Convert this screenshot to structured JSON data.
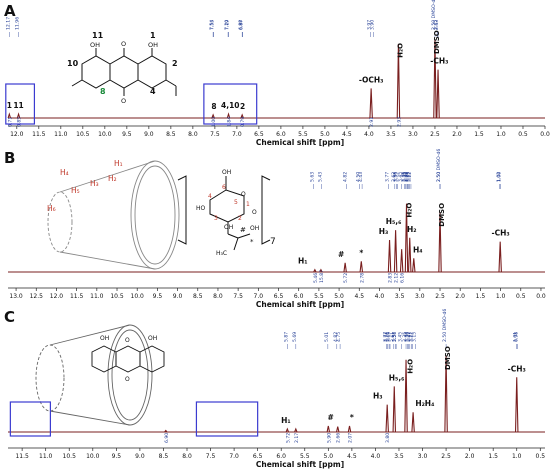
{
  "colors": {
    "spectrum": "#7a1f1f",
    "baseline_label": "#1f3a93",
    "box": "#3b3bd0",
    "ring_red": "#c0392b",
    "axis": "#222222"
  },
  "panels": [
    {
      "letter": "A",
      "xlabel": "Chemical shift [ppm]",
      "xlim": [
        12.2,
        0.0
      ],
      "ticks": [
        "12.0",
        "11.5",
        "11.0",
        "10.5",
        "10.0",
        "9.5",
        "9.0",
        "8.5",
        "8.0",
        "7.5",
        "7.0",
        "6.5",
        "6.0",
        "5.5",
        "5.0",
        "4.5",
        "4.0",
        "3.5",
        "3.0",
        "2.5",
        "2.0",
        "1.5",
        "1.0",
        "0.5",
        "0.0"
      ],
      "peak_labels": [
        {
          "ppm": 12.17,
          "text": "1"
        },
        {
          "ppm": 11.96,
          "text": "11"
        },
        {
          "ppm": 7.52,
          "text": "8"
        },
        {
          "ppm": 7.15,
          "text": "4,10"
        },
        {
          "ppm": 6.87,
          "text": "2"
        },
        {
          "ppm": 3.95,
          "text": "-OCH₃"
        },
        {
          "ppm": 3.33,
          "text": "H₂O"
        },
        {
          "ppm": 2.5,
          "text": "DMSO"
        },
        {
          "ppm": 2.4,
          "text": "-CH₃"
        }
      ],
      "top_shifts": [
        "12.17",
        "11.96",
        "7.54",
        "7.53",
        "7.20",
        "7.19",
        "6.88",
        "6.87",
        "3.97",
        "3.90",
        "2.45",
        "2.50 DMSO-d6",
        "2.43"
      ],
      "integrals": [
        "0.71",
        "0.85",
        "1.00",
        "1.84",
        "0.79",
        "2.91",
        "2.93"
      ],
      "structure_labels": [
        "11",
        "1",
        "OH",
        "OH",
        "10",
        "2",
        "8",
        "4",
        "O",
        "O"
      ]
    },
    {
      "letter": "B",
      "xlabel": "Chemical shift [ppm]",
      "xlim": [
        13.2,
        -0.1
      ],
      "ticks": [
        "13.0",
        "12.5",
        "12.0",
        "11.5",
        "11.0",
        "10.5",
        "10.0",
        "9.5",
        "9.0",
        "8.5",
        "8.0",
        "7.5",
        "7.0",
        "6.5",
        "6.0",
        "5.5",
        "5.0",
        "4.5",
        "4.0",
        "3.5",
        "3.0",
        "2.5",
        "2.0",
        "1.5",
        "1.0",
        "0.5",
        "0.0"
      ],
      "peak_labels": [
        {
          "ppm": 5.9,
          "text": "H₁"
        },
        {
          "ppm": 4.95,
          "text": "#"
        },
        {
          "ppm": 4.45,
          "text": "*"
        },
        {
          "ppm": 3.9,
          "text": "H₃"
        },
        {
          "ppm": 3.65,
          "text": "H₅,₆"
        },
        {
          "ppm": 3.3,
          "text": "H₂O"
        },
        {
          "ppm": 3.2,
          "text": "H₂"
        },
        {
          "ppm": 3.05,
          "text": "H₄"
        },
        {
          "ppm": 2.5,
          "text": "DMSO"
        },
        {
          "ppm": 1.0,
          "text": "-CH₃"
        }
      ],
      "top_shifts": [
        "5.63",
        "5.43",
        "4.82",
        "4.50",
        "4.43",
        "3.77",
        "3.62",
        "3.58",
        "3.55",
        "3.45",
        "3.38",
        "3.35",
        "3.32",
        "3.30",
        "3.28",
        "3.25",
        "3.22",
        "2.50 DMSO-d6",
        "2.50",
        "1.02",
        "1.00"
      ],
      "integrals": [
        "5.46",
        "15.87",
        "5.72",
        "2.78",
        "2.83",
        "2.12",
        "6.16"
      ],
      "ring_labels": [
        "H₁",
        "H₂",
        "H₃",
        "H₄",
        "H₅",
        "H₆"
      ],
      "sugar_labels": [
        "6",
        "4",
        "5",
        "3",
        "2",
        "1",
        "O",
        "O",
        "OH",
        "HO",
        "OH",
        "OH",
        "7",
        "#",
        "*",
        "H₃C"
      ]
    },
    {
      "letter": "C",
      "xlabel": "Chemical shift [ppm]",
      "xlim": [
        11.8,
        0.4
      ],
      "ticks": [
        "11.5",
        "11.0",
        "10.5",
        "10.0",
        "9.5",
        "9.0",
        "8.5",
        "8.0",
        "7.5",
        "7.0",
        "6.5",
        "6.0",
        "5.5",
        "5.0",
        "4.5",
        "4.0",
        "3.5",
        "3.0",
        "2.5",
        "2.0",
        "1.5",
        "1.0",
        "0.5"
      ],
      "peak_labels": [
        {
          "ppm": 5.9,
          "text": "H₁"
        },
        {
          "ppm": 4.95,
          "text": "#"
        },
        {
          "ppm": 4.5,
          "text": "*"
        },
        {
          "ppm": 3.95,
          "text": "H₃"
        },
        {
          "ppm": 3.55,
          "text": "H₅,₆"
        },
        {
          "ppm": 3.3,
          "text": "H₂O"
        },
        {
          "ppm": 3.05,
          "text": "H₂"
        },
        {
          "ppm": 2.85,
          "text": "H₄"
        },
        {
          "ppm": 2.5,
          "text": "DMSO"
        },
        {
          "ppm": 1.0,
          "text": "-CH₃"
        }
      ],
      "top_shifts": [
        "5.87",
        "5.69",
        "5.01",
        "4.82",
        "4.75",
        "3.77",
        "3.74",
        "3.71",
        "3.69",
        "3.61",
        "3.57",
        "3.56",
        "3.45",
        "3.35",
        "3.32",
        "3.30",
        "3.27",
        "3.23",
        "3.21",
        "3.15",
        "2.50 DMSO-d6",
        "1.01",
        "0.98"
      ],
      "integrals": [
        "6.90",
        "5.72",
        "2.17",
        "5.90",
        "2.66",
        "2.07",
        "3.80"
      ],
      "structure_labels": [
        "OH",
        "OH",
        "O",
        "O"
      ]
    }
  ],
  "chart_data": [
    {
      "type": "line",
      "title": "A",
      "xlabel": "Chemical shift [ppm]",
      "xlim": [
        12.2,
        0.0
      ],
      "x_reversed": true,
      "peaks": [
        {
          "x": 12.17,
          "y": 0.05
        },
        {
          "x": 11.96,
          "y": 0.05
        },
        {
          "x": 7.54,
          "y": 0.04
        },
        {
          "x": 7.19,
          "y": 0.05
        },
        {
          "x": 6.88,
          "y": 0.04
        },
        {
          "x": 3.95,
          "y": 0.38
        },
        {
          "x": 3.33,
          "y": 0.95
        },
        {
          "x": 2.5,
          "y": 1.0
        },
        {
          "x": 2.43,
          "y": 0.62
        }
      ]
    },
    {
      "type": "line",
      "title": "B",
      "xlabel": "Chemical shift [ppm]",
      "xlim": [
        13.2,
        -0.1
      ],
      "x_reversed": true,
      "peaks": [
        {
          "x": 5.6,
          "y": 0.03
        },
        {
          "x": 5.45,
          "y": 0.03
        },
        {
          "x": 4.85,
          "y": 0.12
        },
        {
          "x": 4.45,
          "y": 0.14
        },
        {
          "x": 3.75,
          "y": 0.42
        },
        {
          "x": 3.6,
          "y": 0.55
        },
        {
          "x": 3.45,
          "y": 0.3
        },
        {
          "x": 3.33,
          "y": 0.9
        },
        {
          "x": 3.25,
          "y": 0.45
        },
        {
          "x": 3.15,
          "y": 0.18
        },
        {
          "x": 2.5,
          "y": 0.78
        },
        {
          "x": 1.01,
          "y": 0.4
        }
      ]
    },
    {
      "type": "line",
      "title": "C",
      "xlabel": "Chemical shift [ppm]",
      "xlim": [
        11.8,
        0.4
      ],
      "x_reversed": true,
      "peaks": [
        {
          "x": 8.45,
          "y": 0.02
        },
        {
          "x": 5.87,
          "y": 0.04
        },
        {
          "x": 5.69,
          "y": 0.04
        },
        {
          "x": 5.0,
          "y": 0.08
        },
        {
          "x": 4.8,
          "y": 0.07
        },
        {
          "x": 4.55,
          "y": 0.08
        },
        {
          "x": 3.75,
          "y": 0.36
        },
        {
          "x": 3.6,
          "y": 0.6
        },
        {
          "x": 3.35,
          "y": 0.95
        },
        {
          "x": 3.2,
          "y": 0.26
        },
        {
          "x": 2.5,
          "y": 1.0
        },
        {
          "x": 1.0,
          "y": 0.72
        }
      ]
    }
  ]
}
